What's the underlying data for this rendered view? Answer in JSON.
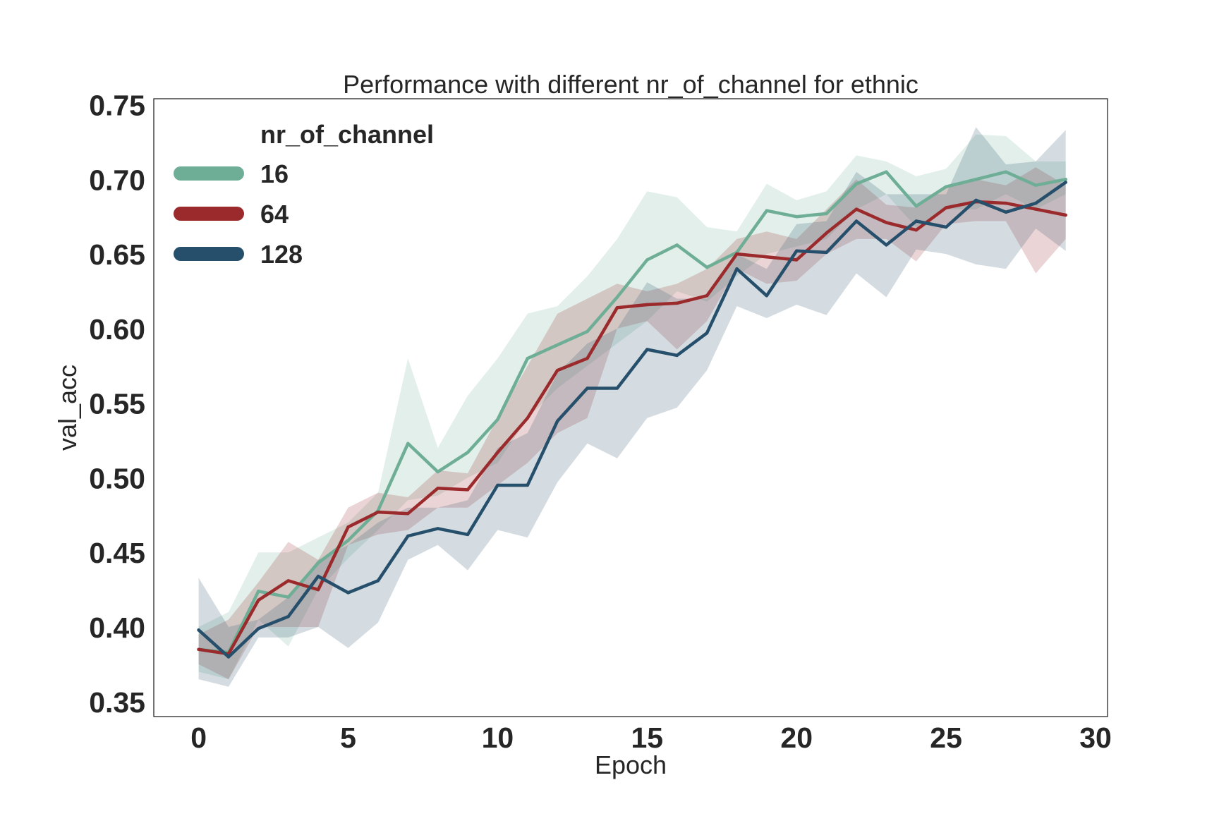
{
  "chart_data": {
    "type": "line",
    "title": "Performance with different nr_of_channel for ethnic",
    "xlabel": "Epoch",
    "ylabel": "val_acc",
    "xlim": [
      -1.5,
      30.4
    ],
    "ylim": [
      0.34,
      0.754
    ],
    "xticks": [
      0,
      5,
      10,
      15,
      20,
      25,
      30
    ],
    "yticks": [
      0.35,
      0.4,
      0.45,
      0.5,
      0.55,
      0.6,
      0.65,
      0.7,
      0.75
    ],
    "xtick_labels": [
      "0",
      "5",
      "10",
      "15",
      "20",
      "25",
      "30"
    ],
    "ytick_labels": [
      "0.35",
      "0.40",
      "0.45",
      "0.50",
      "0.55",
      "0.60",
      "0.65",
      "0.70",
      "0.75"
    ],
    "grid": false,
    "legend": {
      "title": "nr_of_channel",
      "placement": "top-left"
    },
    "x": [
      0,
      1,
      2,
      3,
      4,
      5,
      6,
      7,
      8,
      9,
      10,
      11,
      12,
      13,
      14,
      15,
      16,
      17,
      18,
      19,
      20,
      21,
      22,
      23,
      24,
      25,
      26,
      27,
      28,
      29
    ],
    "series": [
      {
        "name": "16",
        "color": "#6fae96",
        "values": [
          0.385,
          0.383,
          0.424,
          0.42,
          0.443,
          0.458,
          0.478,
          0.523,
          0.504,
          0.517,
          0.539,
          0.58,
          0.589,
          0.598,
          0.621,
          0.646,
          0.656,
          0.641,
          0.651,
          0.679,
          0.675,
          0.677,
          0.697,
          0.705,
          0.682,
          0.695,
          0.7,
          0.705,
          0.696,
          0.7
        ],
        "upper": [
          0.4,
          0.41,
          0.45,
          0.45,
          0.46,
          0.47,
          0.49,
          0.58,
          0.52,
          0.555,
          0.58,
          0.61,
          0.615,
          0.635,
          0.66,
          0.692,
          0.688,
          0.668,
          0.665,
          0.697,
          0.686,
          0.692,
          0.716,
          0.712,
          0.702,
          0.707,
          0.73,
          0.729,
          0.712,
          0.712
        ],
        "lower": [
          0.37,
          0.365,
          0.405,
          0.387,
          0.425,
          0.446,
          0.465,
          0.485,
          0.488,
          0.5,
          0.51,
          0.54,
          0.56,
          0.575,
          0.59,
          0.605,
          0.625,
          0.618,
          0.635,
          0.65,
          0.655,
          0.66,
          0.68,
          0.69,
          0.668,
          0.68,
          0.68,
          0.69,
          0.68,
          0.69
        ]
      },
      {
        "name": "64",
        "color": "#9b2a2c",
        "values": [
          0.385,
          0.382,
          0.418,
          0.431,
          0.425,
          0.467,
          0.477,
          0.476,
          0.493,
          0.492,
          0.517,
          0.54,
          0.572,
          0.58,
          0.614,
          0.616,
          0.617,
          0.622,
          0.65,
          0.648,
          0.646,
          0.664,
          0.68,
          0.671,
          0.666,
          0.681,
          0.685,
          0.684,
          0.68,
          0.676
        ],
        "upper": [
          0.395,
          0.405,
          0.43,
          0.457,
          0.445,
          0.48,
          0.49,
          0.487,
          0.505,
          0.503,
          0.54,
          0.575,
          0.61,
          0.62,
          0.63,
          0.625,
          0.63,
          0.64,
          0.66,
          0.665,
          0.66,
          0.68,
          0.7,
          0.683,
          0.681,
          0.696,
          0.7,
          0.696,
          0.708,
          0.696
        ],
        "lower": [
          0.375,
          0.365,
          0.4,
          0.4,
          0.4,
          0.455,
          0.462,
          0.465,
          0.48,
          0.48,
          0.495,
          0.51,
          0.53,
          0.54,
          0.6,
          0.605,
          0.586,
          0.605,
          0.64,
          0.63,
          0.632,
          0.65,
          0.66,
          0.66,
          0.645,
          0.67,
          0.672,
          0.672,
          0.637,
          0.66
        ]
      },
      {
        "name": "128",
        "color": "#264f6b",
        "values": [
          0.398,
          0.38,
          0.399,
          0.407,
          0.434,
          0.423,
          0.431,
          0.461,
          0.466,
          0.462,
          0.495,
          0.495,
          0.538,
          0.56,
          0.56,
          0.586,
          0.582,
          0.597,
          0.64,
          0.622,
          0.652,
          0.651,
          0.672,
          0.656,
          0.672,
          0.668,
          0.686,
          0.678,
          0.684,
          0.698
        ],
        "upper": [
          0.433,
          0.4,
          0.405,
          0.42,
          0.445,
          0.455,
          0.47,
          0.48,
          0.48,
          0.485,
          0.52,
          0.53,
          0.57,
          0.59,
          0.6,
          0.631,
          0.62,
          0.62,
          0.65,
          0.64,
          0.67,
          0.672,
          0.705,
          0.69,
          0.69,
          0.69,
          0.735,
          0.71,
          0.712,
          0.733
        ],
        "lower": [
          0.365,
          0.36,
          0.393,
          0.393,
          0.4,
          0.386,
          0.403,
          0.445,
          0.455,
          0.438,
          0.465,
          0.46,
          0.497,
          0.523,
          0.513,
          0.54,
          0.547,
          0.572,
          0.615,
          0.607,
          0.616,
          0.609,
          0.637,
          0.621,
          0.653,
          0.65,
          0.643,
          0.64,
          0.667,
          0.652
        ]
      }
    ]
  }
}
